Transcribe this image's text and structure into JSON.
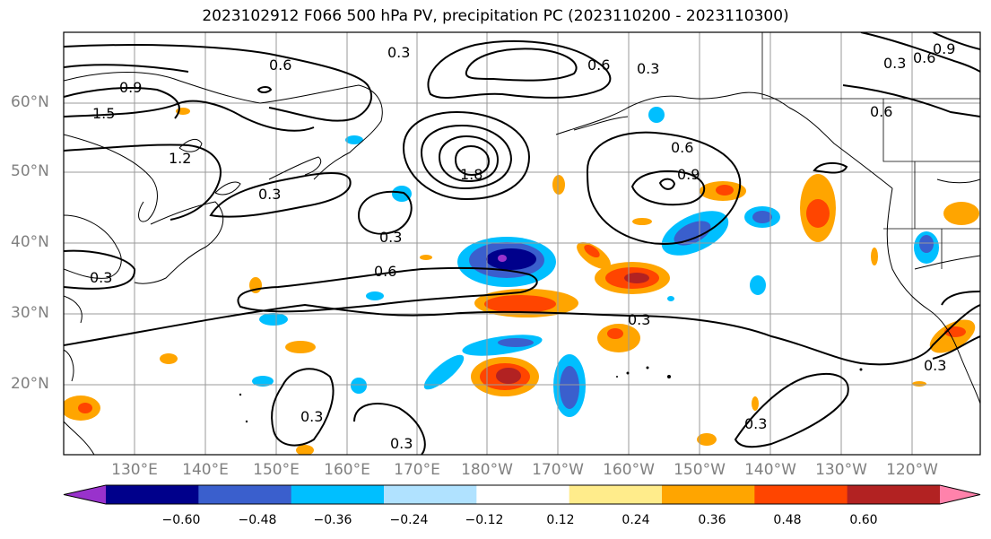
{
  "title": "2023102912 F066 500 hPa PV, precipitation PC (2023110200 - 2023110300)",
  "lat_labels": [
    "60°N",
    "50°N",
    "40°N",
    "30°N",
    "20°N"
  ],
  "lon_labels": [
    "130°E",
    "140°E",
    "150°E",
    "160°E",
    "170°E",
    "180°W",
    "170°W",
    "160°W",
    "150°W",
    "140°W",
    "130°W",
    "120°W"
  ],
  "contour_labels": [
    "0.3",
    "0.6",
    "0.9",
    "1.2",
    "1.5",
    "1.8"
  ],
  "colorbar": {
    "ticks": [
      "−0.60",
      "−0.48",
      "−0.36",
      "−0.24",
      "−0.12",
      "0.12",
      "0.24",
      "0.36",
      "0.48",
      "0.60"
    ],
    "colors": [
      "#9932cc",
      "#00008b",
      "#3a5fcd",
      "#00bfff",
      "#b0e2ff",
      "#ffffff",
      "#ffec8b",
      "#ffa500",
      "#ff4500",
      "#b22222",
      "#ff82ab"
    ]
  }
}
